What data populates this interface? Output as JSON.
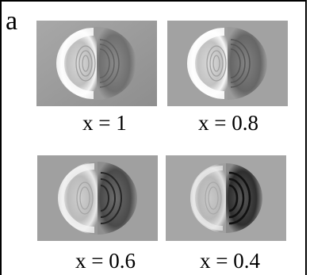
{
  "figure": {
    "panel_label": "a",
    "panels": [
      {
        "caption": "x = 1",
        "right_contrast": 0.45
      },
      {
        "caption": "x = 0.8",
        "right_contrast": 0.55
      },
      {
        "caption": "x = 0.6",
        "right_contrast": 0.75
      },
      {
        "caption": "x = 0.4",
        "right_contrast": 0.95
      }
    ]
  }
}
